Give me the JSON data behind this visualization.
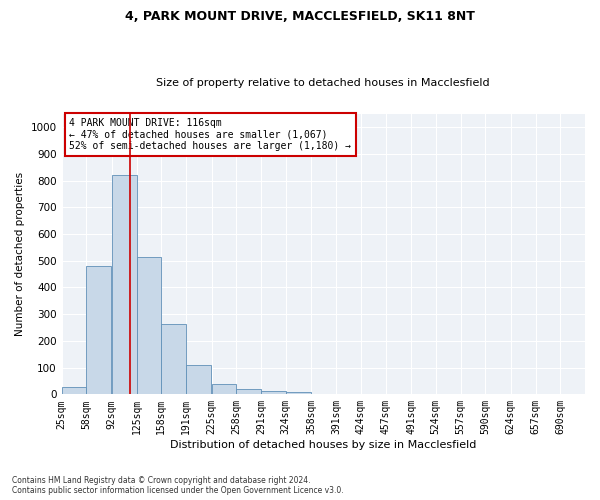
{
  "title_line1": "4, PARK MOUNT DRIVE, MACCLESFIELD, SK11 8NT",
  "title_line2": "Size of property relative to detached houses in Macclesfield",
  "xlabel": "Distribution of detached houses by size in Macclesfield",
  "ylabel": "Number of detached properties",
  "footnote": "Contains HM Land Registry data © Crown copyright and database right 2024.\nContains public sector information licensed under the Open Government Licence v3.0.",
  "bar_values": [
    27,
    480,
    820,
    515,
    265,
    110,
    37,
    20,
    12,
    7,
    0,
    0,
    0,
    0,
    0,
    0,
    0,
    0,
    0,
    0
  ],
  "bin_labels": [
    "25sqm",
    "58sqm",
    "92sqm",
    "125sqm",
    "158sqm",
    "191sqm",
    "225sqm",
    "258sqm",
    "291sqm",
    "324sqm",
    "358sqm",
    "391sqm",
    "424sqm",
    "457sqm",
    "491sqm",
    "524sqm",
    "557sqm",
    "590sqm",
    "624sqm",
    "657sqm",
    "690sqm"
  ],
  "bin_edges": [
    25,
    58,
    92,
    125,
    158,
    191,
    225,
    258,
    291,
    324,
    358,
    391,
    424,
    457,
    491,
    524,
    557,
    590,
    624,
    657,
    690
  ],
  "property_size": 116,
  "property_label": "4 PARK MOUNT DRIVE: 116sqm",
  "annotation_line1": "← 47% of detached houses are smaller (1,067)",
  "annotation_line2": "52% of semi-detached houses are larger (1,180) →",
  "bar_color": "#c8d8e8",
  "bar_edge_color": "#6090b8",
  "vline_color": "#cc0000",
  "annotation_box_color": "#cc0000",
  "background_color": "#eef2f7",
  "ylim": [
    0,
    1050
  ],
  "yticks": [
    0,
    100,
    200,
    300,
    400,
    500,
    600,
    700,
    800,
    900,
    1000
  ],
  "title_fontsize": 9,
  "subtitle_fontsize": 8,
  "ylabel_fontsize": 7.5,
  "xlabel_fontsize": 8,
  "tick_fontsize": 7,
  "annot_fontsize": 7,
  "footnote_fontsize": 5.5
}
